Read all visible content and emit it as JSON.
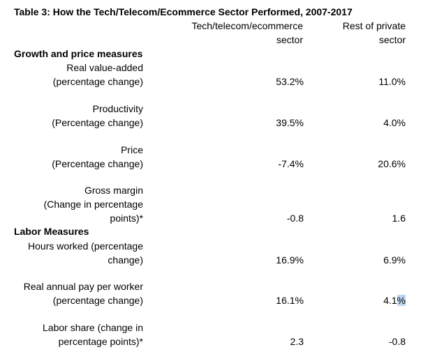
{
  "table": {
    "title": "Table 3: How the Tech/Telecom/Ecommerce Sector Performed, 2007-2017",
    "col1_header_line1": "Tech/telecom/ecommerce",
    "col1_header_line2": "sector",
    "col2_header_line1": "Rest of private",
    "col2_header_line2": "sector",
    "sections": [
      {
        "heading": "Growth and price measures",
        "rows": [
          {
            "label_lines": [
              "Real value-added",
              "(percentage change)"
            ],
            "tech": "53.2%",
            "rest": "11.0%"
          },
          {
            "label_lines": [
              "Productivity",
              "(Percentage change)"
            ],
            "tech": "39.5%",
            "rest": "4.0%"
          },
          {
            "label_lines": [
              "Price",
              "(Percentage change)"
            ],
            "tech": "-7.4%",
            "rest": "20.6%"
          },
          {
            "label_lines": [
              "Gross margin",
              "(Change in percentage",
              "points)*"
            ],
            "tech": "-0.8",
            "rest": "1.6"
          }
        ]
      },
      {
        "heading": "Labor Measures",
        "rows": [
          {
            "label_lines": [
              "Hours worked (percentage",
              "change)"
            ],
            "tech": "16.9%",
            "rest": "6.9%"
          },
          {
            "label_lines": [
              "Real annual pay per worker",
              "(percentage change)"
            ],
            "tech": "16.1%",
            "rest_prefix": "4.1",
            "rest_highlight": "%"
          },
          {
            "label_lines": [
              "Labor share (change in",
              "percentage points)*"
            ],
            "tech": "2.3",
            "rest": "-0.8"
          }
        ]
      }
    ]
  }
}
